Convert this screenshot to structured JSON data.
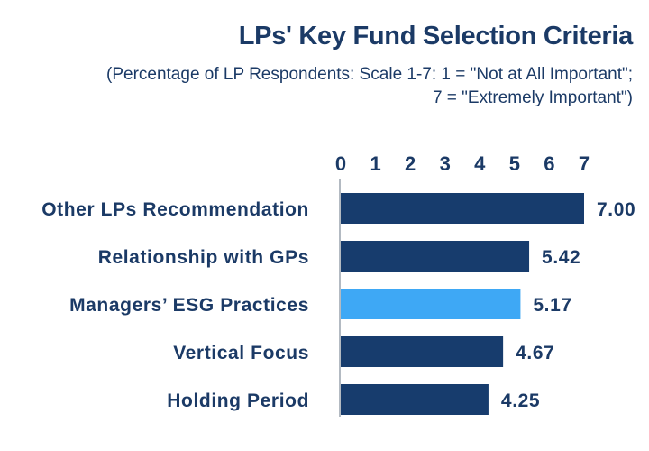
{
  "chart_data": {
    "type": "bar",
    "orientation": "horizontal",
    "title": "LPs' Key Fund Selection Criteria",
    "subtitle_line1": "(Percentage of LP Respondents: Scale 1-7: 1 = \"Not at All Important\";",
    "subtitle_line2": "7 = \"Extremely Important\")",
    "categories": [
      "Other LPs Recommendation",
      "Relationship with GPs",
      "Managers’ ESG Practices",
      "Vertical Focus",
      "Holding Period"
    ],
    "values": [
      7.0,
      5.42,
      5.17,
      4.67,
      4.25
    ],
    "value_labels": [
      "7.00",
      "5.42",
      "5.17",
      "4.67",
      "4.25"
    ],
    "highlight_index": 2,
    "xlim": [
      0,
      7
    ],
    "ticks": [
      "0",
      "1",
      "2",
      "3",
      "4",
      "5",
      "6",
      "7"
    ],
    "axis_position": "top",
    "grid": false,
    "colors": {
      "bar": "#173c6d",
      "highlight": "#3ea8f5",
      "text": "#1b3a66"
    }
  }
}
